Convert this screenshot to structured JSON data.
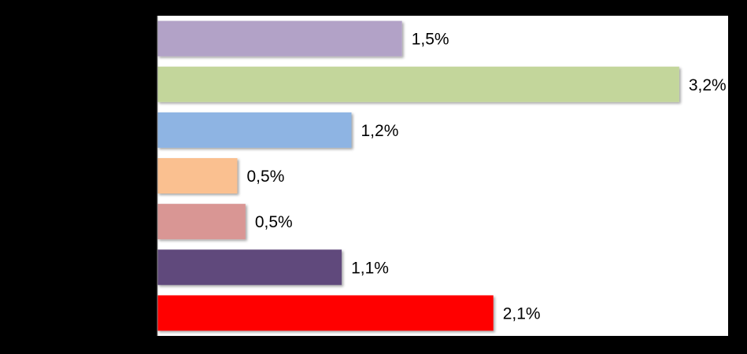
{
  "chart_data": {
    "type": "bar",
    "orientation": "horizontal",
    "values": [
      1.5,
      3.2,
      1.19,
      0.49,
      0.54,
      1.13,
      2.06
    ],
    "value_labels": [
      "1,5%",
      "3,2%",
      "1,2%",
      "0,5%",
      "0,5%",
      "1,1%",
      "2,1%"
    ],
    "colors": [
      "#b2a2c7",
      "#c3d69b",
      "#8eb4e3",
      "#fac090",
      "#d99694",
      "#604a7b",
      "#ff0000"
    ],
    "xlim": [
      0,
      3.5
    ]
  }
}
